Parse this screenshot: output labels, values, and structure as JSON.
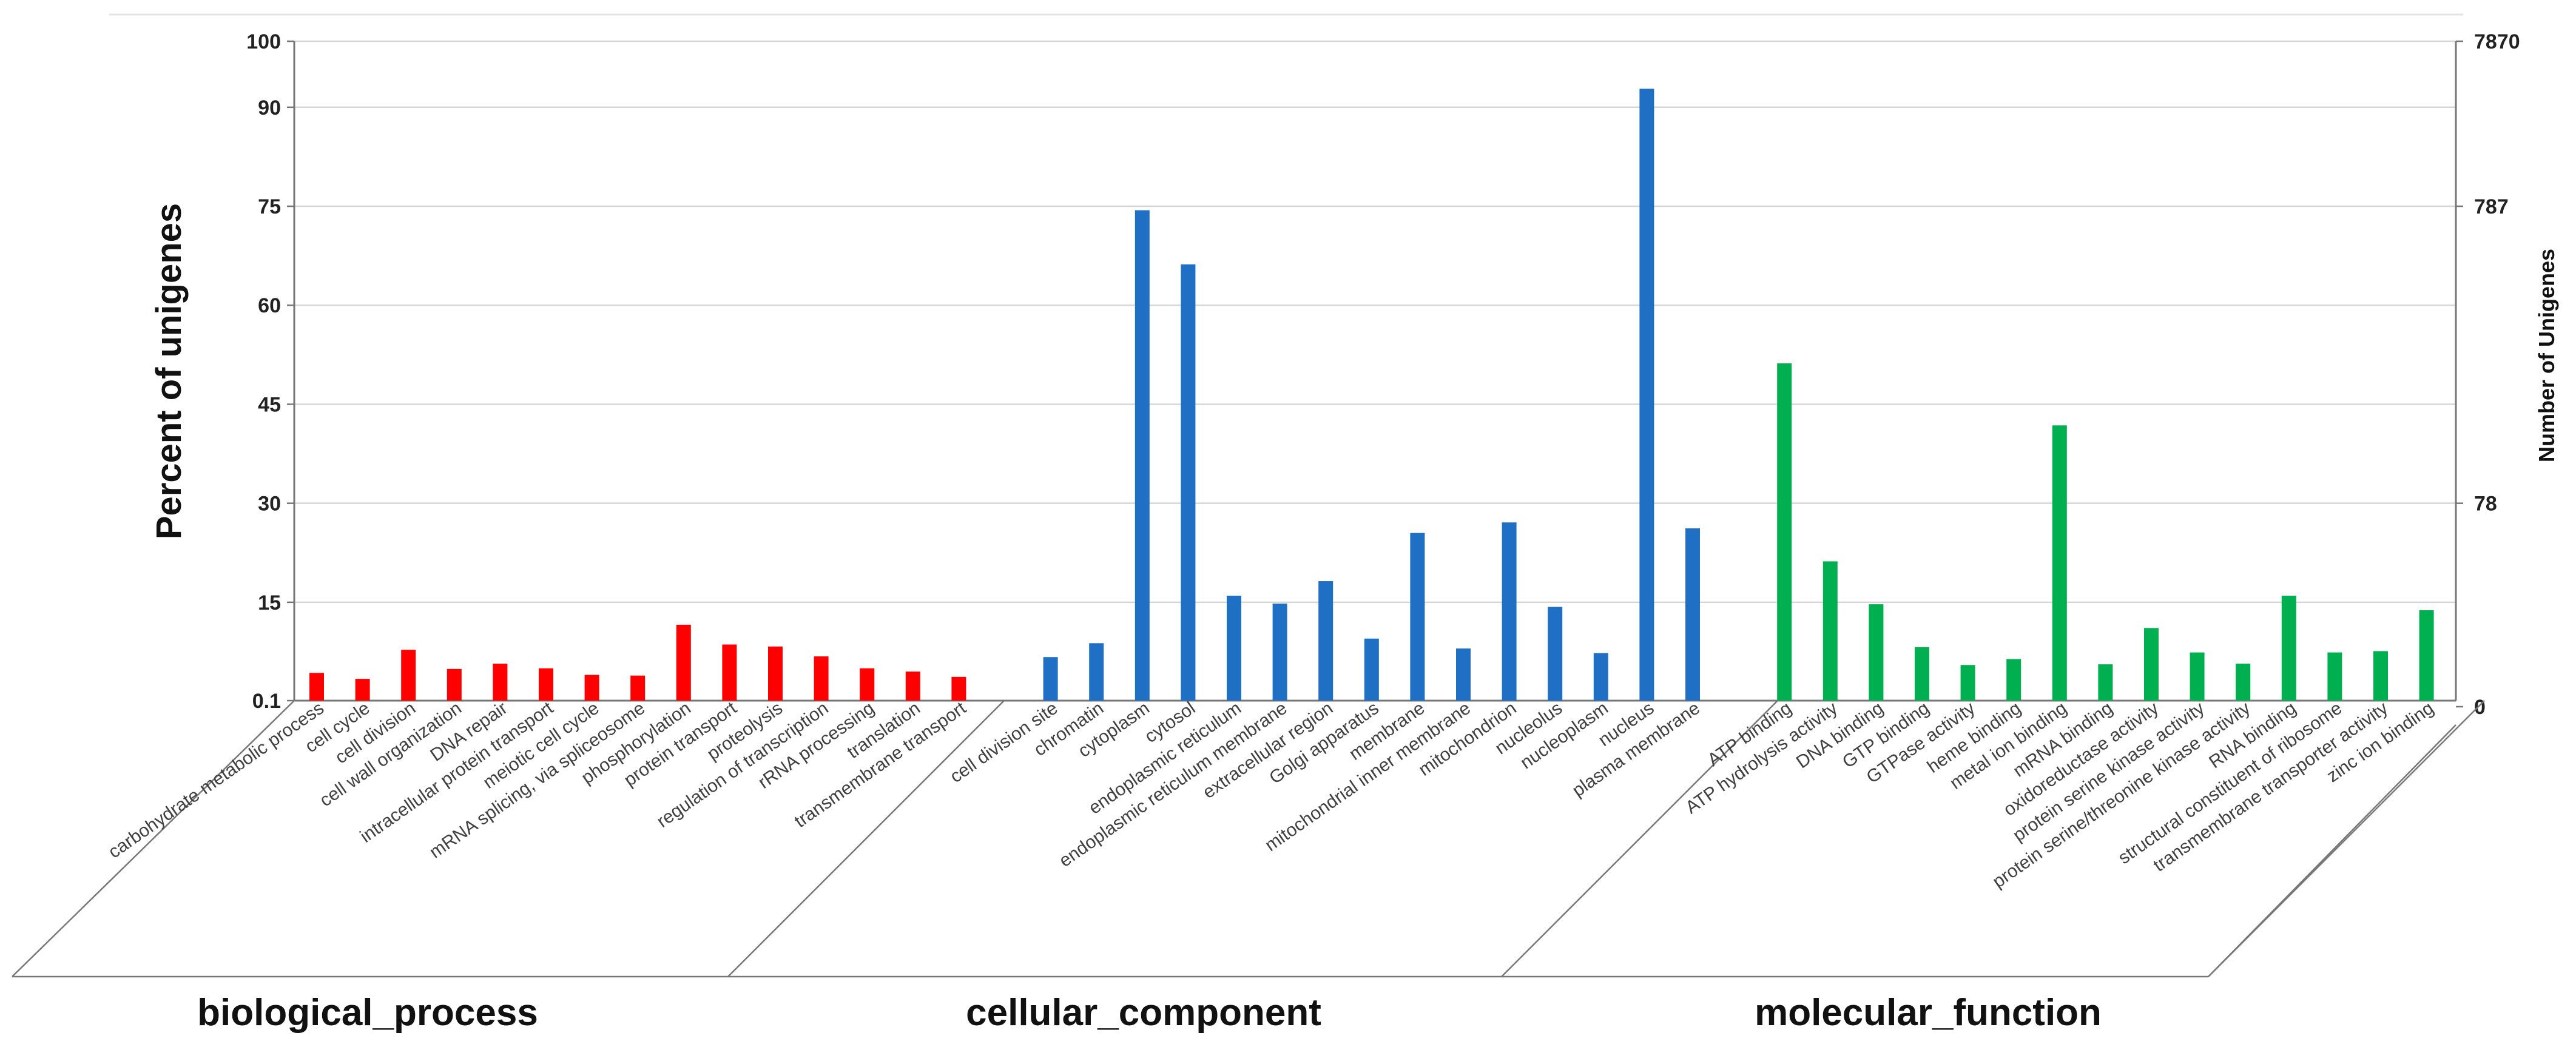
{
  "chart_data": {
    "type": "bar",
    "ylabel_left": "Percent of unigenes",
    "ylabel_right": "Number of Unigenes",
    "y_ticks_left": [
      "100",
      "90",
      "75",
      "60",
      "45",
      "30",
      "15",
      "0.1"
    ],
    "y_ticks_right": [
      "7870",
      "787",
      "78",
      "0"
    ],
    "ylim": [
      0.1,
      100
    ],
    "grid": true,
    "colors": {
      "biological_process": "#ff0000",
      "cellular_component": "#1f6fc5",
      "molecular_function": "#00b050"
    },
    "groups": [
      {
        "name": "biological_process",
        "color": "#ff0000",
        "bars": [
          {
            "category": "carbohydrate metabolic process",
            "value": 4.3
          },
          {
            "category": "cell cycle",
            "value": 3.4
          },
          {
            "category": "cell division",
            "value": 7.8
          },
          {
            "category": "cell wall organization",
            "value": 4.9
          },
          {
            "category": "DNA repair",
            "value": 5.7
          },
          {
            "category": "intracellular protein transport",
            "value": 5.0
          },
          {
            "category": "meiotic cell cycle",
            "value": 4.0
          },
          {
            "category": "mRNA splicing, via spliceosome",
            "value": 3.9
          },
          {
            "category": "phosphorylation",
            "value": 11.6
          },
          {
            "category": "protein transport",
            "value": 8.6
          },
          {
            "category": "proteolysis",
            "value": 8.3
          },
          {
            "category": "regulation of transcription",
            "value": 6.8
          },
          {
            "category": "rRNA processing",
            "value": 5.0
          },
          {
            "category": "translation",
            "value": 4.5
          },
          {
            "category": "transmembrane transport",
            "value": 3.7
          }
        ]
      },
      {
        "name": "cellular_component",
        "color": "#1f6fc5",
        "bars": [
          {
            "category": "cell division site",
            "value": 6.7
          },
          {
            "category": "chromatin",
            "value": 8.8
          },
          {
            "category": "cytoplasm",
            "value": 74.4
          },
          {
            "category": "cytosol",
            "value": 66.2
          },
          {
            "category": "endoplasmic reticulum",
            "value": 16.0
          },
          {
            "category": "endoplasmic reticulum membrane",
            "value": 14.8
          },
          {
            "category": "extracellular region",
            "value": 18.2
          },
          {
            "category": "Golgi apparatus",
            "value": 9.5
          },
          {
            "category": "membrane",
            "value": 25.5
          },
          {
            "category": "mitochondrial inner membrane",
            "value": 8.0
          },
          {
            "category": "mitochondrion",
            "value": 27.1
          },
          {
            "category": "nucleolus",
            "value": 14.3
          },
          {
            "category": "nucleoplasm",
            "value": 7.3
          },
          {
            "category": "nucleus",
            "value": 92.8
          },
          {
            "category": "plasma membrane",
            "value": 26.2
          }
        ]
      },
      {
        "name": "molecular_function",
        "color": "#00b050",
        "bars": [
          {
            "category": "ATP binding",
            "value": 51.2
          },
          {
            "category": "ATP hydrolysis activity",
            "value": 21.2
          },
          {
            "category": "DNA binding",
            "value": 14.7
          },
          {
            "category": "GTP binding",
            "value": 8.2
          },
          {
            "category": "GTPase activity",
            "value": 5.5
          },
          {
            "category": "heme binding",
            "value": 6.4
          },
          {
            "category": "metal ion binding",
            "value": 41.8
          },
          {
            "category": "mRNA binding",
            "value": 5.6
          },
          {
            "category": "oxidoreductase activity",
            "value": 11.1
          },
          {
            "category": "protein serine kinase activity",
            "value": 7.4
          },
          {
            "category": "protein serine/threonine kinase activity",
            "value": 5.7
          },
          {
            "category": "RNA binding",
            "value": 16.0
          },
          {
            "category": "structural constituent of ribosome",
            "value": 7.4
          },
          {
            "category": "transmembrane transporter activity",
            "value": 7.6
          },
          {
            "category": "zinc ion binding",
            "value": 13.8
          }
        ]
      }
    ]
  }
}
